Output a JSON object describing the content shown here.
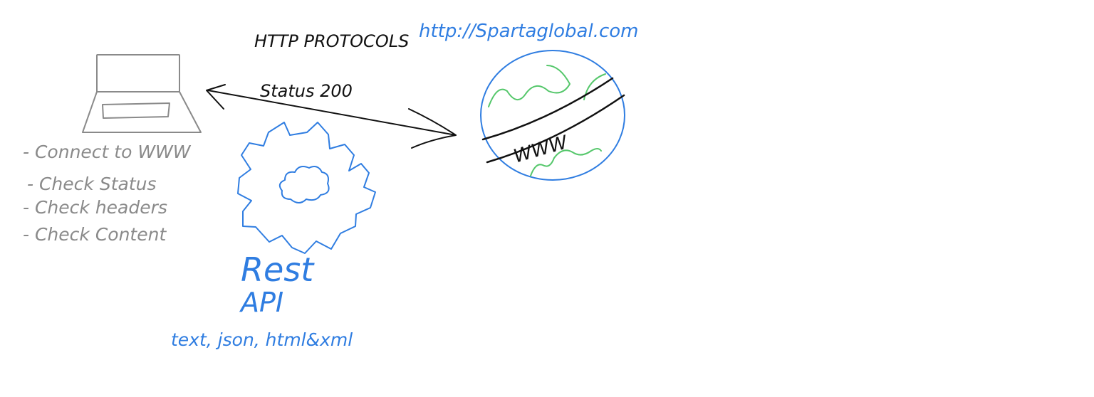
{
  "header": {
    "protocol_label": "HTTP PROTOCOLS",
    "url": "http://Spartaglobal.com"
  },
  "connection": {
    "status_label": "Status 200"
  },
  "client": {
    "icon": "laptop-icon",
    "steps": [
      "- Connect to WWW",
      "- Check Status",
      "- Check headers",
      "- Check Content"
    ]
  },
  "server": {
    "icon": "globe-icon",
    "label": "WWW"
  },
  "api": {
    "icon": "gear-icon",
    "title_line1": "Rest",
    "title_line2": "API",
    "formats": "text, json, html&xml"
  },
  "colors": {
    "ink": "#111111",
    "gray": "#8a8a8a",
    "blue": "#2f7de1",
    "green": "#55c76b",
    "background": "#ffffff"
  }
}
